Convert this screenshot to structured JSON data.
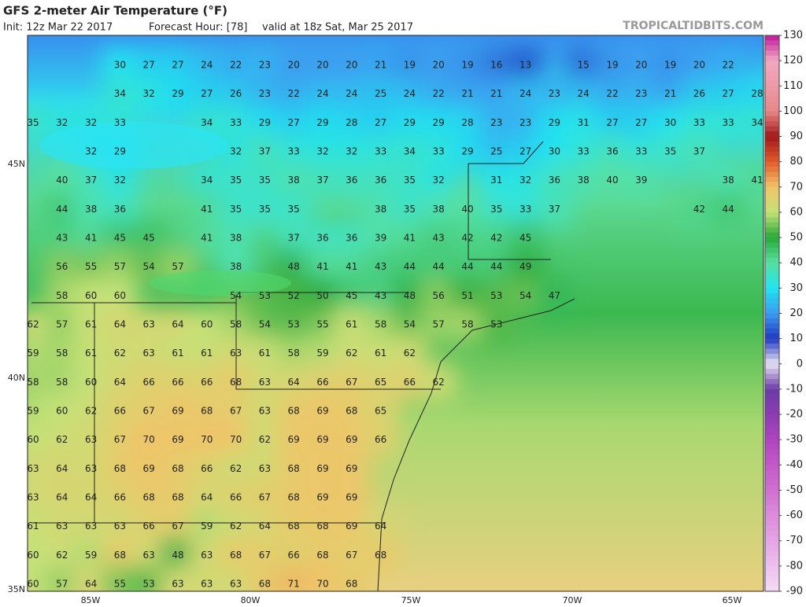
{
  "header": {
    "title": "GFS 2-meter Air Temperature (°F)",
    "init": "Init: 12z Mar 22 2017",
    "forecast_hour": "Forecast Hour: [78]",
    "valid": "valid at 18z Sat, Mar 25 2017",
    "watermark": "TROPICALTIDBITS.COM"
  },
  "map": {
    "lat_labels": [
      "45N",
      "40N",
      "35N"
    ],
    "lon_labels": [
      "85W",
      "80W",
      "75W",
      "70W",
      "65W"
    ],
    "grid_values": [
      [
        null,
        null,
        null,
        30,
        27,
        27,
        24,
        22,
        23,
        20,
        20,
        20,
        21,
        19,
        20,
        19,
        16,
        13,
        null,
        15,
        19,
        20,
        19,
        20,
        22
      ],
      [
        null,
        null,
        null,
        34,
        32,
        29,
        27,
        26,
        23,
        22,
        24,
        24,
        25,
        24,
        22,
        21,
        21,
        24,
        23,
        24,
        22,
        23,
        21,
        26,
        27,
        28
      ],
      [
        35,
        32,
        32,
        33,
        null,
        null,
        34,
        33,
        29,
        27,
        29,
        28,
        27,
        29,
        29,
        28,
        23,
        23,
        29,
        31,
        27,
        27,
        30,
        33,
        33,
        34
      ],
      [
        null,
        null,
        32,
        29,
        null,
        null,
        null,
        32,
        37,
        33,
        32,
        32,
        33,
        34,
        33,
        29,
        25,
        27,
        30,
        33,
        36,
        33,
        35,
        37
      ],
      [
        null,
        40,
        37,
        32,
        null,
        null,
        34,
        35,
        35,
        38,
        37,
        36,
        36,
        35,
        32,
        null,
        31,
        32,
        36,
        38,
        40,
        39,
        null,
        null,
        38,
        41
      ],
      [
        null,
        44,
        38,
        36,
        null,
        null,
        41,
        35,
        35,
        35,
        null,
        null,
        38,
        35,
        38,
        40,
        35,
        33,
        37,
        null,
        null,
        null,
        null,
        42,
        44
      ],
      [
        null,
        43,
        41,
        45,
        45,
        null,
        41,
        38,
        null,
        37,
        36,
        36,
        39,
        41,
        43,
        42,
        42,
        45
      ],
      [
        null,
        56,
        55,
        57,
        54,
        57,
        null,
        38,
        null,
        48,
        41,
        41,
        43,
        44,
        44,
        44,
        44,
        49
      ],
      [
        null,
        58,
        60,
        60,
        null,
        null,
        null,
        54,
        53,
        52,
        50,
        45,
        43,
        48,
        56,
        51,
        53,
        54,
        47
      ],
      [
        62,
        57,
        61,
        64,
        63,
        64,
        60,
        58,
        54,
        53,
        55,
        61,
        58,
        54,
        57,
        58,
        53
      ],
      [
        59,
        58,
        61,
        62,
        63,
        61,
        61,
        63,
        61,
        58,
        59,
        62,
        61,
        62
      ],
      [
        58,
        58,
        60,
        64,
        66,
        66,
        66,
        68,
        63,
        64,
        66,
        67,
        65,
        66,
        62
      ],
      [
        59,
        60,
        62,
        66,
        67,
        69,
        68,
        67,
        63,
        68,
        69,
        68,
        65
      ],
      [
        60,
        62,
        63,
        67,
        70,
        69,
        70,
        70,
        62,
        69,
        69,
        69,
        66
      ],
      [
        63,
        64,
        63,
        68,
        69,
        68,
        66,
        62,
        63,
        68,
        69,
        69
      ],
      [
        63,
        64,
        64,
        66,
        68,
        68,
        64,
        66,
        67,
        68,
        69,
        69
      ],
      [
        61,
        63,
        63,
        63,
        66,
        67,
        59,
        62,
        64,
        68,
        68,
        69,
        64
      ],
      [
        60,
        62,
        59,
        68,
        63,
        48,
        63,
        68,
        67,
        66,
        68,
        67,
        68
      ],
      [
        60,
        57,
        64,
        55,
        53,
        63,
        63,
        63,
        68,
        71,
        70,
        68
      ]
    ]
  },
  "colorbar": {
    "ticks": [
      130,
      120,
      110,
      100,
      90,
      80,
      70,
      60,
      50,
      40,
      30,
      20,
      10,
      0,
      -10,
      -20,
      -30,
      -40,
      -50,
      -60,
      -70,
      -80,
      -90
    ],
    "colors": [
      "#c0189c",
      "#f0a8c0",
      "#ec9aa8",
      "#e88888",
      "#a01818",
      "#e05a2c",
      "#f0c468",
      "#c4e278",
      "#28a838",
      "#58e0a0",
      "#20e4f0",
      "#3c9cf0",
      "#2038c0",
      "#e8e4f4",
      "#6a3ca8",
      "#8c3cb0",
      "#b044c0",
      "#c458c8",
      "#d070d0",
      "#dc8cdc",
      "#e4a4e4",
      "#ecc0ec",
      "#f4dcf4"
    ]
  }
}
